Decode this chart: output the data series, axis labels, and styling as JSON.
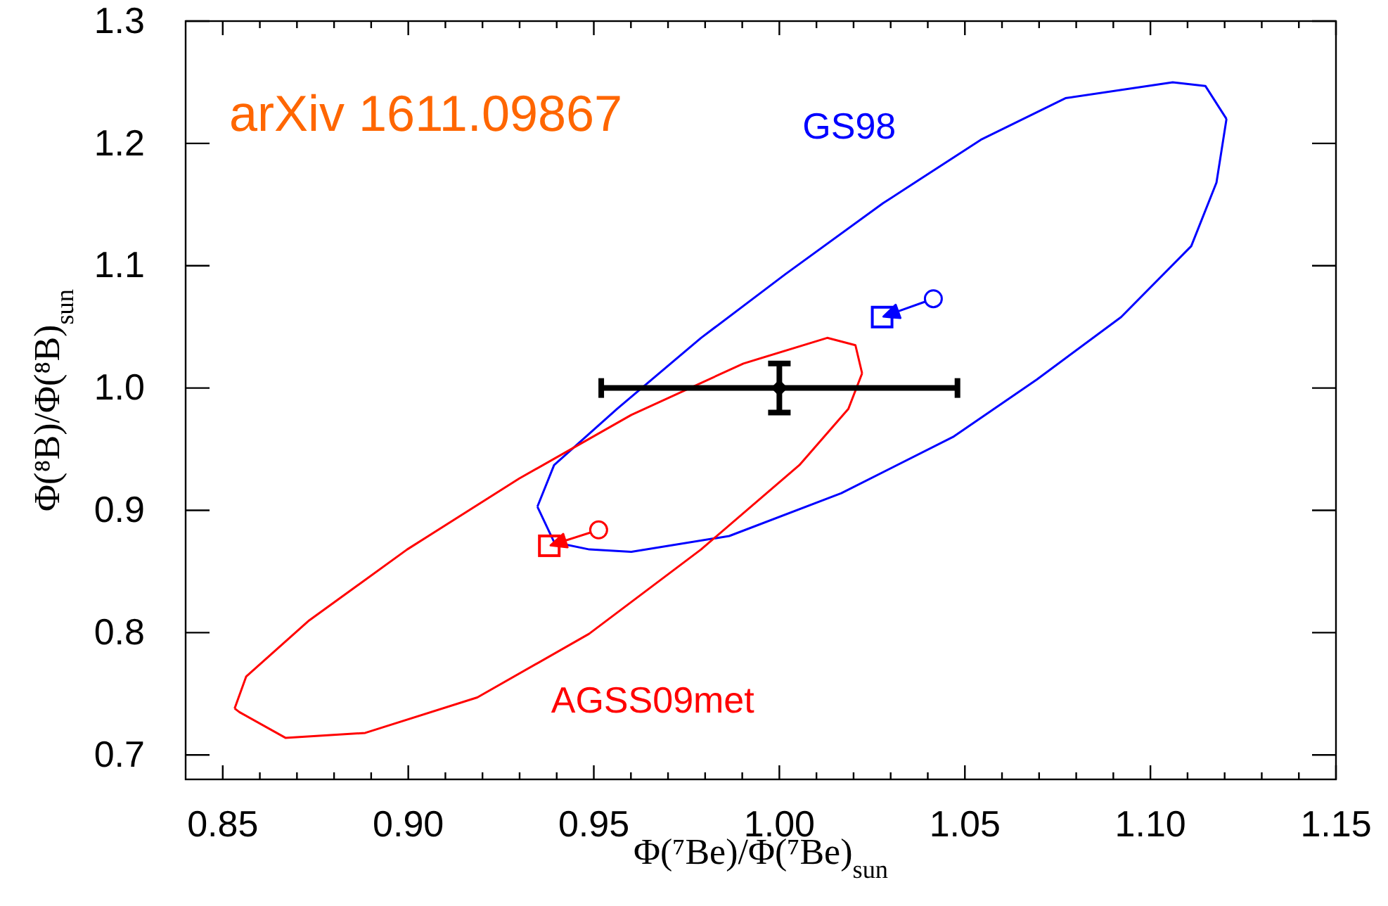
{
  "chart_data": {
    "type": "scatter",
    "xlabel": "Φ(⁷Be)/Φ(⁷Be)$_{sun}$",
    "ylabel": "Φ(⁸B)/Φ(⁸B)$_{sun}$",
    "annotations": [
      "arXiv 1611.09867"
    ],
    "xlim": [
      0.84,
      1.15
    ],
    "ylim": [
      0.68,
      1.3
    ],
    "xticks": [
      0.85,
      {
        "value": 0.9,
        "label": "0.90"
      },
      0.95,
      {
        "value": 1,
        "label": "1.00"
      },
      1.05,
      {
        "value": 1.1,
        "label": "1.10"
      },
      1.15
    ],
    "yticks": [
      0.7,
      0.8,
      0.9,
      {
        "value": 1,
        "label": "1.0"
      },
      1.1,
      1.2,
      1.3
    ],
    "grid": false,
    "legend": false,
    "series": [
      {
        "name": "GS98",
        "type": "line",
        "color": "#0000ff",
        "marker": "none",
        "x": [
          0.9348,
          0.9393,
          0.9563,
          0.9789,
          1.0016,
          1.0279,
          1.0543,
          1.0771,
          1.106,
          1.1148,
          1.1205
        ],
        "values": [
          0.903,
          0.937,
          0.983,
          1.041,
          1.093,
          1.151,
          1.203,
          1.237,
          1.25,
          1.247,
          1.22
        ]
      },
      {
        "type": "line",
        "color": "#0000ff",
        "marker": "none",
        "x": [
          0.9348,
          0.9393,
          0.9488,
          0.9601,
          0.9865,
          1.0167,
          1.0468,
          1.0694,
          1.0921,
          1.111,
          1.1178,
          1.1205
        ],
        "values": [
          0.903,
          0.874,
          0.868,
          0.866,
          0.879,
          0.914,
          0.96,
          1.007,
          1.058,
          1.116,
          1.168,
          1.22
        ]
      },
      {
        "name": "AGSS09met",
        "type": "line",
        "color": "#ff0000",
        "marker": "none",
        "x": [
          0.8532,
          0.8545,
          0.8669,
          0.8884,
          0.9186,
          0.9487,
          0.9789,
          1.0054,
          1.0186,
          1.0223
        ],
        "values": [
          0.738,
          0.735,
          0.714,
          0.718,
          0.747,
          0.799,
          0.868,
          0.937,
          0.983,
          1.012
        ]
      },
      {
        "type": "line",
        "color": "#ff0000",
        "marker": "none",
        "x": [
          0.8532,
          0.8563,
          0.8733,
          0.8997,
          0.9299,
          0.9601,
          0.9903,
          1.0129,
          1.0205,
          1.0223
        ],
        "values": [
          0.738,
          0.764,
          0.81,
          0.868,
          0.926,
          0.978,
          1.02,
          1.041,
          1.035,
          1.012
        ]
      },
      {
        "color": "#0000ff",
        "marker": "circle",
        "x": [
          1.0415
        ],
        "values": [
          1.073
        ]
      },
      {
        "color": "#0000ff",
        "marker": "square",
        "x": [
          1.0277
        ],
        "values": [
          1.058
        ]
      },
      {
        "color": "#ff0000",
        "marker": "circle",
        "x": [
          0.9513
        ],
        "values": [
          0.884
        ]
      },
      {
        "color": "#ff0000",
        "marker": "square",
        "x": [
          0.938
        ],
        "values": [
          0.871
        ]
      },
      {
        "color": "#000000",
        "marker": "diamond",
        "x": [
          1.0
        ],
        "values": [
          1.0
        ],
        "errors": [
          0.02
        ],
        "xerrors": [
          0.048
        ]
      }
    ]
  }
}
